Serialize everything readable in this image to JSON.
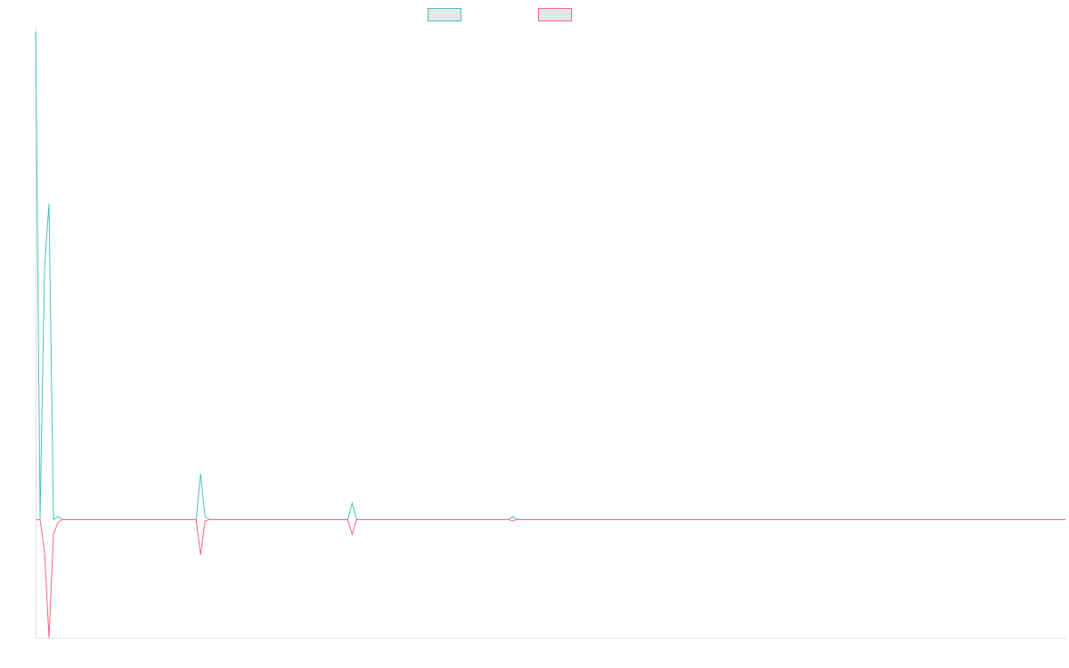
{
  "chart_data": {
    "type": "line",
    "title": "",
    "xlabel": "",
    "ylabel": "",
    "grid": false,
    "legend_position": "top",
    "ylim": [
      -40,
      165
    ],
    "x": [
      0,
      1,
      2,
      3,
      4,
      5,
      6,
      7,
      8,
      9,
      10,
      11,
      12,
      13,
      14,
      15,
      16,
      17,
      18,
      19,
      20,
      21,
      22,
      23,
      24,
      25,
      26,
      27,
      28,
      29,
      30,
      31,
      32,
      33,
      34,
      35,
      36,
      37,
      38,
      39,
      40,
      41,
      42,
      43,
      44,
      45,
      46,
      47,
      48,
      49,
      50,
      51,
      52,
      53,
      54,
      55,
      56,
      57,
      58,
      59,
      60,
      61,
      62,
      63,
      64,
      65,
      66,
      67,
      68,
      69,
      70,
      71,
      72,
      73,
      74,
      75,
      76,
      77,
      78,
      79,
      80,
      81,
      82,
      83,
      84,
      85,
      86,
      87,
      88,
      89,
      90,
      91,
      92,
      93,
      94,
      95,
      96,
      97,
      98,
      99,
      100,
      101,
      102,
      103,
      104,
      105,
      106,
      107,
      108,
      109,
      110,
      111,
      112,
      113,
      114,
      115,
      116,
      117,
      118,
      119,
      120,
      121,
      122,
      123,
      124,
      125,
      126,
      127,
      128,
      129,
      130,
      131,
      132,
      133,
      134,
      135,
      136,
      137,
      138,
      139,
      140,
      141,
      142,
      143,
      144,
      145,
      146,
      147,
      148,
      149,
      150,
      151,
      152,
      153,
      154,
      155,
      156,
      157,
      158,
      159,
      160,
      161,
      162,
      163,
      164,
      165,
      166,
      167,
      168,
      169,
      170,
      171,
      172,
      173,
      174,
      175,
      176,
      177,
      178,
      179,
      180,
      181,
      182,
      183,
      184,
      185,
      186,
      187,
      188,
      189,
      190,
      191,
      192,
      193,
      194,
      195,
      196,
      197,
      198,
      199,
      200,
      201,
      202,
      203,
      204,
      205,
      206,
      207,
      208,
      209,
      210,
      211,
      212,
      213,
      214,
      215,
      216,
      217,
      218,
      219,
      220,
      221,
      222,
      223,
      224,
      225,
      226,
      227,
      228,
      229,
      230,
      231
    ],
    "series": [
      {
        "name": "",
        "color": "#4bc0c0",
        "values": [
          165,
          0,
          85,
          107,
          0,
          1,
          0,
          0,
          0,
          0,
          0,
          0,
          0,
          0,
          0,
          0,
          0,
          0,
          0,
          0,
          0,
          0,
          0,
          0,
          0,
          0,
          0,
          0,
          0,
          0,
          0,
          0,
          0,
          0,
          0,
          0,
          0,
          15.5,
          1,
          0,
          0,
          0,
          0,
          0,
          0,
          0,
          0,
          0,
          0,
          0,
          0,
          0,
          0,
          0,
          0,
          0,
          0,
          0,
          0,
          0,
          0,
          0,
          0,
          0,
          0,
          0,
          0,
          0,
          0,
          0,
          0,
          5.5,
          0,
          0,
          0,
          0,
          0,
          0,
          0,
          0,
          0,
          0,
          0,
          0,
          0,
          0,
          0,
          0,
          0,
          0,
          0,
          0,
          0,
          0,
          0,
          0,
          0,
          0,
          0,
          0,
          0,
          0,
          0,
          0,
          0,
          0,
          0,
          1,
          0,
          0,
          0,
          0,
          0,
          0,
          0,
          0,
          0,
          0,
          0,
          0,
          0,
          0,
          0,
          0,
          0,
          0,
          0,
          0,
          0,
          0,
          0,
          0,
          0,
          0,
          0,
          0,
          0,
          0,
          0,
          0,
          0,
          0,
          0,
          0,
          0,
          0,
          0,
          0,
          0,
          0,
          0,
          0,
          0,
          0,
          0,
          0,
          0,
          0,
          0,
          0,
          0,
          0,
          0,
          0,
          0,
          0,
          0,
          0,
          0,
          0,
          0,
          0,
          0,
          0,
          0,
          0,
          0,
          0,
          0,
          0,
          0,
          0,
          0,
          0,
          0,
          0,
          0,
          0,
          0,
          0,
          0,
          0,
          0,
          0,
          0,
          0,
          0,
          0,
          0,
          0,
          0,
          0,
          0,
          0,
          0,
          0,
          0,
          0,
          0,
          0,
          0,
          0,
          0,
          0,
          0,
          0,
          0,
          0,
          0,
          0,
          0,
          0,
          0,
          0,
          0,
          0,
          0,
          0,
          0,
          0,
          0,
          0
        ]
      },
      {
        "name": "",
        "color": "#ff6384",
        "values": [
          0,
          0,
          -11,
          -40,
          -5,
          -1,
          0,
          0,
          0,
          0,
          0,
          0,
          0,
          0,
          0,
          0,
          0,
          0,
          0,
          0,
          0,
          0,
          0,
          0,
          0,
          0,
          0,
          0,
          0,
          0,
          0,
          0,
          0,
          0,
          0,
          0,
          0,
          -12,
          -0.5,
          0,
          0,
          0,
          0,
          0,
          0,
          0,
          0,
          0,
          0,
          0,
          0,
          0,
          0,
          0,
          0,
          0,
          0,
          0,
          0,
          0,
          0,
          0,
          0,
          0,
          0,
          0,
          0,
          0,
          0,
          0,
          0,
          -5,
          0,
          0,
          0,
          0,
          0,
          0,
          0,
          0,
          0,
          0,
          0,
          0,
          0,
          0,
          0,
          0,
          0,
          0,
          0,
          0,
          0,
          0,
          0,
          0,
          0,
          0,
          0,
          0,
          0,
          0,
          0,
          0,
          0,
          0,
          0,
          -0.5,
          0,
          0,
          0,
          0,
          0,
          0,
          0,
          0,
          0,
          0,
          0,
          0,
          0,
          0,
          0,
          0,
          0,
          0,
          0,
          0,
          0,
          0,
          0,
          0,
          0,
          0,
          0,
          0,
          0,
          0,
          0,
          0,
          0,
          0,
          0,
          0,
          0,
          0,
          0,
          0,
          0,
          0,
          0,
          0,
          0,
          0,
          0,
          0,
          0,
          0,
          0,
          0,
          0,
          0,
          0,
          0,
          0,
          0,
          0,
          0,
          0,
          0,
          0,
          0,
          0,
          0,
          0,
          0,
          0,
          0,
          0,
          0,
          0,
          0,
          0,
          0,
          0,
          0,
          0,
          0,
          0,
          0,
          0,
          0,
          0,
          0,
          0,
          0,
          0,
          0,
          0,
          0,
          0,
          0,
          0,
          0,
          0,
          0,
          0,
          0,
          0,
          0,
          0,
          0,
          0,
          0,
          0,
          0,
          0,
          0,
          0,
          0,
          0,
          0,
          0,
          0,
          0,
          0,
          0,
          0,
          0,
          0,
          0,
          0
        ]
      }
    ]
  }
}
